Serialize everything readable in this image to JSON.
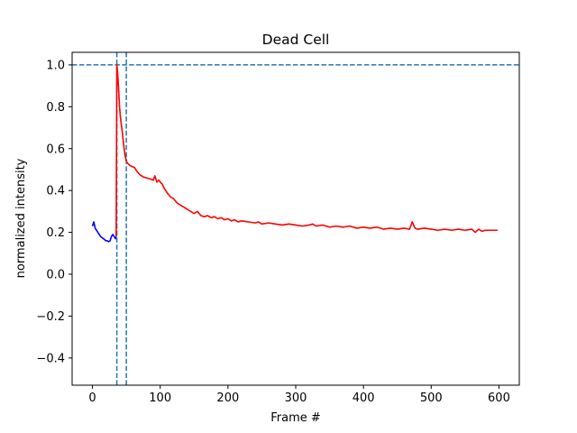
{
  "chart_data": {
    "type": "line",
    "title": "Dead Cell",
    "xlabel": "Frame #",
    "ylabel": "normalized intensity",
    "xlim": [
      -30,
      630
    ],
    "ylim": [
      -0.53,
      1.06
    ],
    "xticks": [
      0,
      100,
      200,
      300,
      400,
      500,
      600
    ],
    "xtick_labels": [
      "0",
      "100",
      "200",
      "300",
      "400",
      "500",
      "600"
    ],
    "yticks": [
      -0.4,
      -0.2,
      0.0,
      0.2,
      0.4,
      0.6,
      0.8,
      1.0
    ],
    "ytick_labels": [
      "−0.4",
      "−0.2",
      "0.0",
      "0.2",
      "0.4",
      "0.6",
      "0.8",
      "1.0"
    ],
    "grid": false,
    "reference_lines": [
      {
        "orientation": "horizontal",
        "value": 1.0,
        "style": "dashed",
        "color": "#1f77b4"
      },
      {
        "orientation": "vertical",
        "value": 36,
        "style": "dashed",
        "color": "#1f77b4"
      },
      {
        "orientation": "vertical",
        "value": 50,
        "style": "dashed",
        "color": "#1f77b4"
      }
    ],
    "series": [
      {
        "color": "#0000ff",
        "x": [
          0,
          2,
          4,
          6,
          8,
          10,
          12,
          14,
          16,
          18,
          20,
          22,
          24,
          26,
          28,
          30,
          32,
          34,
          35
        ],
        "y": [
          0.23,
          0.25,
          0.22,
          0.21,
          0.2,
          0.19,
          0.18,
          0.175,
          0.17,
          0.165,
          0.16,
          0.16,
          0.155,
          0.16,
          0.18,
          0.19,
          0.18,
          0.17,
          0.18
        ]
      },
      {
        "color": "#ff0000",
        "x": [
          35,
          36,
          37,
          38,
          39,
          40,
          41,
          42,
          44,
          46,
          48,
          50,
          52,
          55,
          58,
          62,
          66,
          70,
          75,
          80,
          85,
          90,
          92,
          95,
          98,
          100,
          103,
          106,
          110,
          115,
          120,
          125,
          130,
          135,
          140,
          145,
          150,
          155,
          160,
          165,
          170,
          175,
          180,
          185,
          190,
          195,
          200,
          205,
          210,
          215,
          220,
          230,
          240,
          245,
          250,
          260,
          270,
          280,
          290,
          300,
          310,
          320,
          325,
          330,
          340,
          350,
          360,
          370,
          380,
          390,
          400,
          410,
          420,
          430,
          440,
          450,
          460,
          468,
          472,
          476,
          480,
          490,
          500,
          510,
          520,
          530,
          540,
          550,
          560,
          565,
          570,
          575,
          580,
          590,
          598
        ],
        "y": [
          0.18,
          1.0,
          0.97,
          0.92,
          0.86,
          0.8,
          0.76,
          0.73,
          0.68,
          0.62,
          0.57,
          0.54,
          0.53,
          0.52,
          0.515,
          0.51,
          0.49,
          0.475,
          0.465,
          0.46,
          0.455,
          0.45,
          0.47,
          0.44,
          0.45,
          0.44,
          0.43,
          0.41,
          0.39,
          0.37,
          0.36,
          0.34,
          0.33,
          0.32,
          0.31,
          0.3,
          0.29,
          0.3,
          0.28,
          0.275,
          0.28,
          0.27,
          0.275,
          0.265,
          0.27,
          0.26,
          0.265,
          0.255,
          0.26,
          0.25,
          0.255,
          0.25,
          0.245,
          0.25,
          0.24,
          0.245,
          0.24,
          0.235,
          0.24,
          0.235,
          0.23,
          0.235,
          0.24,
          0.23,
          0.235,
          0.225,
          0.23,
          0.225,
          0.23,
          0.22,
          0.225,
          0.22,
          0.225,
          0.215,
          0.22,
          0.215,
          0.22,
          0.215,
          0.25,
          0.22,
          0.215,
          0.22,
          0.215,
          0.21,
          0.215,
          0.21,
          0.215,
          0.21,
          0.215,
          0.2,
          0.215,
          0.205,
          0.21,
          0.21,
          0.21
        ]
      }
    ]
  }
}
